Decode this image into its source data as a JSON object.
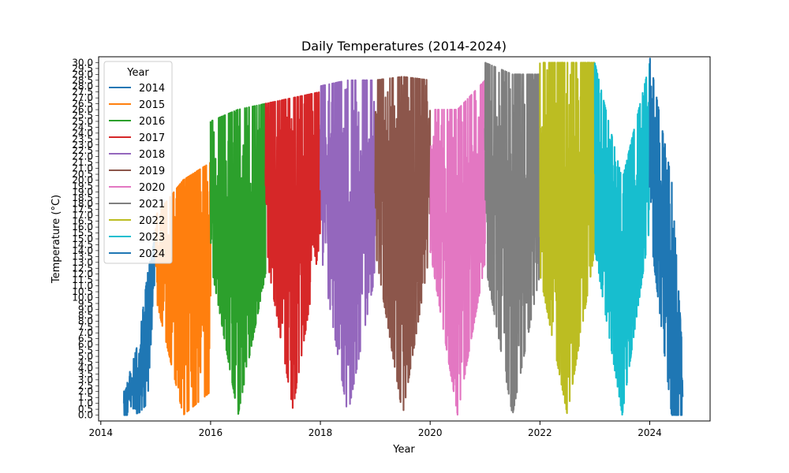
{
  "chart_data": {
    "type": "line",
    "title": "Daily Temperatures (2014-2024)",
    "xlabel": "Year",
    "ylabel": "Temperature (°C)",
    "x_ticks": [
      "2014",
      "2016",
      "2018",
      "2020",
      "2022",
      "2024"
    ],
    "x_tick_values": [
      2014,
      2016,
      2018,
      2020,
      2022,
      2024
    ],
    "xlim": [
      2013.96,
      2025.1
    ],
    "ylim": [
      -0.5,
      30.5
    ],
    "grid": false,
    "legend_title": "Year",
    "legend_position": "top-left",
    "series": [
      {
        "name": "2014",
        "color": "#1f77b4",
        "x_range": [
          2014.42,
          2015.0
        ],
        "envelope": {
          "x": [
            2014.42,
            2014.55,
            2014.7,
            2014.85,
            2015.0
          ],
          "high": [
            2.0,
            4.0,
            6.5,
            12.0,
            15.5
          ],
          "low": [
            0.0,
            0.0,
            0.2,
            1.0,
            13.0
          ]
        },
        "spikes": 20
      },
      {
        "name": "2015",
        "color": "#ff7f0e",
        "x_range": [
          2015.0,
          2016.0
        ],
        "envelope": {
          "x": [
            2015.0,
            2015.5,
            2016.0
          ],
          "high": [
            17.0,
            20.0,
            21.5
          ],
          "low": [
            10.0,
            0.0,
            2.0
          ]
        },
        "spikes": 30
      },
      {
        "name": "2016",
        "color": "#2ca02c",
        "x_range": [
          2016.0,
          2017.0
        ],
        "envelope": {
          "x": [
            2016.0,
            2016.5,
            2017.0
          ],
          "high": [
            25.0,
            26.0,
            26.5
          ],
          "low": [
            13.0,
            0.0,
            12.0
          ]
        },
        "spikes": 30
      },
      {
        "name": "2017",
        "color": "#d62728",
        "x_range": [
          2017.0,
          2018.0
        ],
        "envelope": {
          "x": [
            2017.0,
            2017.5,
            2018.0
          ],
          "high": [
            26.5,
            27.0,
            27.5
          ],
          "low": [
            14.0,
            0.5,
            15.0
          ]
        },
        "spikes": 30
      },
      {
        "name": "2018",
        "color": "#9467bd",
        "x_range": [
          2018.0,
          2019.0
        ],
        "envelope": {
          "x": [
            2018.0,
            2018.5,
            2019.0
          ],
          "high": [
            28.0,
            28.5,
            28.5
          ],
          "low": [
            14.0,
            0.0,
            12.0
          ]
        },
        "spikes": 30
      },
      {
        "name": "2019",
        "color": "#8c564b",
        "x_range": [
          2019.0,
          2020.0
        ],
        "envelope": {
          "x": [
            2019.0,
            2019.5,
            2020.0
          ],
          "high": [
            28.5,
            28.8,
            28.5
          ],
          "low": [
            14.0,
            0.0,
            14.0
          ]
        },
        "spikes": 30
      },
      {
        "name": "2020",
        "color": "#e377c2",
        "x_range": [
          2020.0,
          2021.0
        ],
        "envelope": {
          "x": [
            2020.0,
            2020.5,
            2021.0
          ],
          "high": [
            26.0,
            26.0,
            28.5
          ],
          "low": [
            14.0,
            0.0,
            13.0
          ]
        },
        "spikes": 30
      },
      {
        "name": "2021",
        "color": "#7f7f7f",
        "x_range": [
          2021.0,
          2022.0
        ],
        "envelope": {
          "x": [
            2021.0,
            2021.5,
            2022.0
          ],
          "high": [
            30.0,
            29.0,
            29.0
          ],
          "low": [
            13.0,
            0.0,
            12.0
          ]
        },
        "spikes": 30
      },
      {
        "name": "2022",
        "color": "#bcbd22",
        "x_range": [
          2022.0,
          2023.0
        ],
        "envelope": {
          "x": [
            2022.0,
            2022.5,
            2023.0
          ],
          "high": [
            30.0,
            30.0,
            30.0
          ],
          "low": [
            12.0,
            0.0,
            14.0
          ]
        },
        "spikes": 30
      },
      {
        "name": "2023",
        "color": "#17becf",
        "x_range": [
          2023.0,
          2024.0
        ],
        "envelope": {
          "x": [
            2023.0,
            2023.5,
            2024.0
          ],
          "high": [
            30.0,
            20.0,
            30.0
          ],
          "low": [
            14.0,
            0.0,
            16.0
          ]
        },
        "spikes": 30
      },
      {
        "name": "2024",
        "color": "#1f77b4",
        "x_range": [
          2024.0,
          2024.6
        ],
        "envelope": {
          "x": [
            2024.0,
            2024.2,
            2024.4,
            2024.6
          ],
          "high": [
            30.5,
            25.0,
            20.0,
            5.0
          ],
          "low": [
            16.0,
            8.0,
            0.0,
            0.0
          ]
        },
        "spikes": 18
      }
    ]
  }
}
